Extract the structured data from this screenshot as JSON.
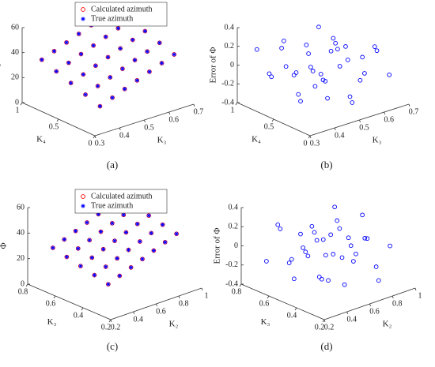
{
  "chart_data": [
    {
      "type": "scatter3d",
      "panel_label": "(a)",
      "xlabel": "K₃",
      "ylabel": "K₄",
      "zlabel": "Φ",
      "xlim": [
        0.3,
        0.7
      ],
      "xticks": [
        0.3,
        0.4,
        0.5,
        0.6,
        0.7
      ],
      "ylim": [
        0,
        1
      ],
      "yticks": [
        0,
        0.5,
        1
      ],
      "zlim": [
        0,
        60
      ],
      "zticks": [
        0,
        20,
        40,
        60
      ],
      "legend": "north",
      "series": [
        {
          "name": "Calculated azimuth",
          "color": "#ff0000",
          "marker": "circle",
          "x": [
            0.35,
            0.4,
            0.45,
            0.5,
            0.55,
            0.6,
            0.65,
            0.35,
            0.4,
            0.45,
            0.5,
            0.55,
            0.6,
            0.65,
            0.35,
            0.4,
            0.45,
            0.5,
            0.55,
            0.6,
            0.65,
            0.35,
            0.4,
            0.45,
            0.5,
            0.55,
            0.6,
            0.65,
            0.35,
            0.4,
            0.45,
            0.5,
            0.55,
            0.6,
            0.65
          ],
          "y": [
            0.1,
            0.1,
            0.1,
            0.1,
            0.1,
            0.1,
            0.1,
            0.3,
            0.3,
            0.3,
            0.3,
            0.3,
            0.3,
            0.3,
            0.5,
            0.5,
            0.5,
            0.5,
            0.5,
            0.5,
            0.5,
            0.7,
            0.7,
            0.7,
            0.7,
            0.7,
            0.7,
            0.7,
            0.9,
            0.9,
            0.9,
            0.9,
            0.9,
            0.9,
            0.9
          ],
          "z": [
            17.8,
            21.5,
            25.3,
            29,
            32.8,
            36.5,
            40.3,
            21.8,
            25.5,
            29.3,
            33,
            36.8,
            40.5,
            44.3,
            25.8,
            29.5,
            33.3,
            37,
            40.8,
            44.5,
            48.3,
            29.8,
            33.5,
            37.3,
            41,
            44.8,
            48.5,
            52.3,
            33.8,
            37.5,
            41.3,
            45,
            48.8,
            52.5,
            56.3
          ]
        },
        {
          "name": "True azimuth",
          "color": "#0000ff",
          "marker": "star",
          "x": [
            0.35,
            0.4,
            0.45,
            0.5,
            0.55,
            0.6,
            0.65,
            0.35,
            0.4,
            0.45,
            0.5,
            0.55,
            0.6,
            0.65,
            0.35,
            0.4,
            0.45,
            0.5,
            0.55,
            0.6,
            0.65,
            0.35,
            0.4,
            0.45,
            0.5,
            0.55,
            0.6,
            0.65,
            0.35,
            0.4,
            0.45,
            0.5,
            0.55,
            0.6,
            0.65
          ],
          "y": [
            0.1,
            0.1,
            0.1,
            0.1,
            0.1,
            0.1,
            0.1,
            0.3,
            0.3,
            0.3,
            0.3,
            0.3,
            0.3,
            0.3,
            0.5,
            0.5,
            0.5,
            0.5,
            0.5,
            0.5,
            0.5,
            0.7,
            0.7,
            0.7,
            0.7,
            0.7,
            0.7,
            0.7,
            0.9,
            0.9,
            0.9,
            0.9,
            0.9,
            0.9,
            0.9
          ],
          "z": [
            17.8,
            21.5,
            25.3,
            29,
            32.8,
            36.5,
            40.3,
            21.8,
            25.5,
            29.3,
            33,
            36.8,
            40.5,
            44.3,
            25.8,
            29.5,
            33.3,
            37,
            40.8,
            44.5,
            48.3,
            29.8,
            33.5,
            37.3,
            41,
            44.8,
            48.5,
            52.3,
            33.8,
            37.5,
            41.3,
            45,
            48.8,
            52.5,
            56.3
          ]
        }
      ]
    },
    {
      "type": "scatter3d",
      "panel_label": "(b)",
      "xlabel": "K₃",
      "ylabel": "K₄",
      "zlabel": "Error of Φ",
      "xlim": [
        0.3,
        0.7
      ],
      "xticks": [
        0.3,
        0.4,
        0.5,
        0.6,
        0.7
      ],
      "ylim": [
        0,
        1
      ],
      "yticks": [
        0,
        0.5,
        1
      ],
      "zlim": [
        -0.4,
        0.4
      ],
      "zticks": [
        -0.4,
        -0.2,
        0,
        0.2,
        0.4
      ],
      "series": [
        {
          "color": "#0000ff",
          "marker": "circle",
          "x": [
            0.35,
            0.4,
            0.45,
            0.5,
            0.55,
            0.6,
            0.65,
            0.35,
            0.4,
            0.45,
            0.5,
            0.55,
            0.6,
            0.65,
            0.35,
            0.4,
            0.45,
            0.5,
            0.55,
            0.6,
            0.65,
            0.35,
            0.4,
            0.45,
            0.5,
            0.55,
            0.6,
            0.65,
            0.35,
            0.4,
            0.45,
            0.5,
            0.55,
            0.6,
            0.65
          ],
          "y": [
            0.1,
            0.1,
            0.1,
            0.1,
            0.1,
            0.1,
            0.1,
            0.3,
            0.3,
            0.3,
            0.3,
            0.3,
            0.3,
            0.3,
            0.5,
            0.5,
            0.5,
            0.5,
            0.5,
            0.5,
            0.5,
            0.7,
            0.7,
            0.7,
            0.7,
            0.7,
            0.7,
            0.7,
            0.9,
            0.9,
            0.9,
            0.9,
            0.9,
            0.9,
            0.9
          ],
          "z": [
            0.05,
            -0.12,
            0.18,
            -0.25,
            0.02,
            0.22,
            -0.08,
            -0.18,
            0.1,
            -0.05,
            0.25,
            -0.3,
            0.08,
            0.15,
            0.12,
            -0.22,
            0.03,
            -0.15,
            0.2,
            -0.02,
            -0.28,
            -0.06,
            0.28,
            -0.1,
            0.06,
            -0.2,
            0.14,
            0.01,
            0.16,
            -0.14,
            0.09,
            -0.24,
            0.04,
            0.19,
            -0.11
          ]
        }
      ]
    },
    {
      "type": "scatter3d",
      "panel_label": "(c)",
      "xlabel": "K₂",
      "ylabel": "K₃",
      "zlabel": "Φ",
      "xlim": [
        0.2,
        1
      ],
      "xticks": [
        0.2,
        0.4,
        0.6,
        0.8,
        1
      ],
      "ylim": [
        0.2,
        0.8
      ],
      "yticks": [
        0.2,
        0.4,
        0.6,
        0.8
      ],
      "zlim": [
        0,
        60
      ],
      "zticks": [
        0,
        20,
        40,
        60
      ],
      "legend": "north",
      "series": [
        {
          "name": "Calculated azimuth",
          "color": "#ff0000",
          "marker": "circle",
          "x": [
            0.3,
            0.4,
            0.5,
            0.6,
            0.7,
            0.8,
            0.9,
            0.3,
            0.4,
            0.5,
            0.6,
            0.7,
            0.8,
            0.9,
            0.3,
            0.4,
            0.5,
            0.6,
            0.7,
            0.8,
            0.9,
            0.3,
            0.4,
            0.5,
            0.6,
            0.7,
            0.8,
            0.9,
            0.3,
            0.4,
            0.5,
            0.6,
            0.7,
            0.8,
            0.9
          ],
          "y": [
            0.3,
            0.3,
            0.3,
            0.3,
            0.3,
            0.3,
            0.3,
            0.4,
            0.4,
            0.4,
            0.4,
            0.4,
            0.4,
            0.4,
            0.5,
            0.5,
            0.5,
            0.5,
            0.5,
            0.5,
            0.5,
            0.6,
            0.6,
            0.6,
            0.6,
            0.6,
            0.6,
            0.6,
            0.7,
            0.7,
            0.7,
            0.7,
            0.7,
            0.7,
            0.7
          ],
          "z": [
            20,
            23.5,
            27,
            30.5,
            34,
            37.5,
            41,
            22.5,
            26,
            29.5,
            33,
            36.5,
            40,
            43.5,
            25,
            28.5,
            32,
            35.5,
            39,
            42.5,
            46,
            27.5,
            31,
            34.5,
            38,
            41.5,
            45,
            48.5,
            30,
            33.5,
            37,
            40.5,
            44,
            47.5,
            51
          ]
        },
        {
          "name": "True azimuth",
          "color": "#0000ff",
          "marker": "star",
          "x": [
            0.3,
            0.4,
            0.5,
            0.6,
            0.7,
            0.8,
            0.9,
            0.3,
            0.4,
            0.5,
            0.6,
            0.7,
            0.8,
            0.9,
            0.3,
            0.4,
            0.5,
            0.6,
            0.7,
            0.8,
            0.9,
            0.3,
            0.4,
            0.5,
            0.6,
            0.7,
            0.8,
            0.9,
            0.3,
            0.4,
            0.5,
            0.6,
            0.7,
            0.8,
            0.9
          ],
          "y": [
            0.3,
            0.3,
            0.3,
            0.3,
            0.3,
            0.3,
            0.3,
            0.4,
            0.4,
            0.4,
            0.4,
            0.4,
            0.4,
            0.4,
            0.5,
            0.5,
            0.5,
            0.5,
            0.5,
            0.5,
            0.5,
            0.6,
            0.6,
            0.6,
            0.6,
            0.6,
            0.6,
            0.6,
            0.7,
            0.7,
            0.7,
            0.7,
            0.7,
            0.7,
            0.7
          ],
          "z": [
            20,
            23.5,
            27,
            30.5,
            34,
            37.5,
            41,
            22.5,
            26,
            29.5,
            33,
            36.5,
            40,
            43.5,
            25,
            28.5,
            32,
            35.5,
            39,
            42.5,
            46,
            27.5,
            31,
            34.5,
            38,
            41.5,
            45,
            48.5,
            30,
            33.5,
            37,
            40.5,
            44,
            47.5,
            51
          ]
        }
      ]
    },
    {
      "type": "scatter3d",
      "panel_label": "(d)",
      "xlabel": "K₂",
      "ylabel": "K₃",
      "zlabel": "Error of Φ",
      "xlim": [
        0.2,
        1
      ],
      "xticks": [
        0.2,
        0.4,
        0.6,
        0.8,
        1
      ],
      "ylim": [
        0.2,
        0.8
      ],
      "yticks": [
        0.2,
        0.4,
        0.6,
        0.8
      ],
      "zlim": [
        -0.4,
        0.4
      ],
      "zticks": [
        -0.4,
        -0.2,
        0,
        0.2,
        0.4
      ],
      "series": [
        {
          "color": "#0000ff",
          "marker": "circle",
          "x": [
            0.3,
            0.4,
            0.5,
            0.6,
            0.7,
            0.8,
            0.9,
            0.3,
            0.4,
            0.5,
            0.6,
            0.7,
            0.8,
            0.9,
            0.3,
            0.4,
            0.5,
            0.6,
            0.7,
            0.8,
            0.9,
            0.3,
            0.4,
            0.5,
            0.6,
            0.7,
            0.8,
            0.9,
            0.3,
            0.4,
            0.5,
            0.6,
            0.7,
            0.8,
            0.9
          ],
          "y": [
            0.3,
            0.3,
            0.3,
            0.3,
            0.3,
            0.3,
            0.3,
            0.4,
            0.4,
            0.4,
            0.4,
            0.4,
            0.4,
            0.4,
            0.5,
            0.5,
            0.5,
            0.5,
            0.5,
            0.5,
            0.5,
            0.6,
            0.6,
            0.6,
            0.6,
            0.6,
            0.6,
            0.6,
            0.7,
            0.7,
            0.7,
            0.7,
            0.7,
            0.7,
            0.7
          ],
          "z": [
            -0.08,
            0.14,
            -0.22,
            0.06,
            0.18,
            -0.3,
            0.02,
            0.1,
            -0.16,
            0.24,
            -0.04,
            -0.12,
            0.08,
            -0.26,
            -0.2,
            0.04,
            0.12,
            -0.34,
            0.16,
            -0.06,
            0.22,
            0.26,
            -0.1,
            -0.02,
            0.1,
            -0.18,
            0.14,
            -0.08,
            -0.14,
            0.2,
            -0.24,
            0.02,
            0.06,
            -0.12,
            0.18
          ]
        }
      ]
    }
  ]
}
